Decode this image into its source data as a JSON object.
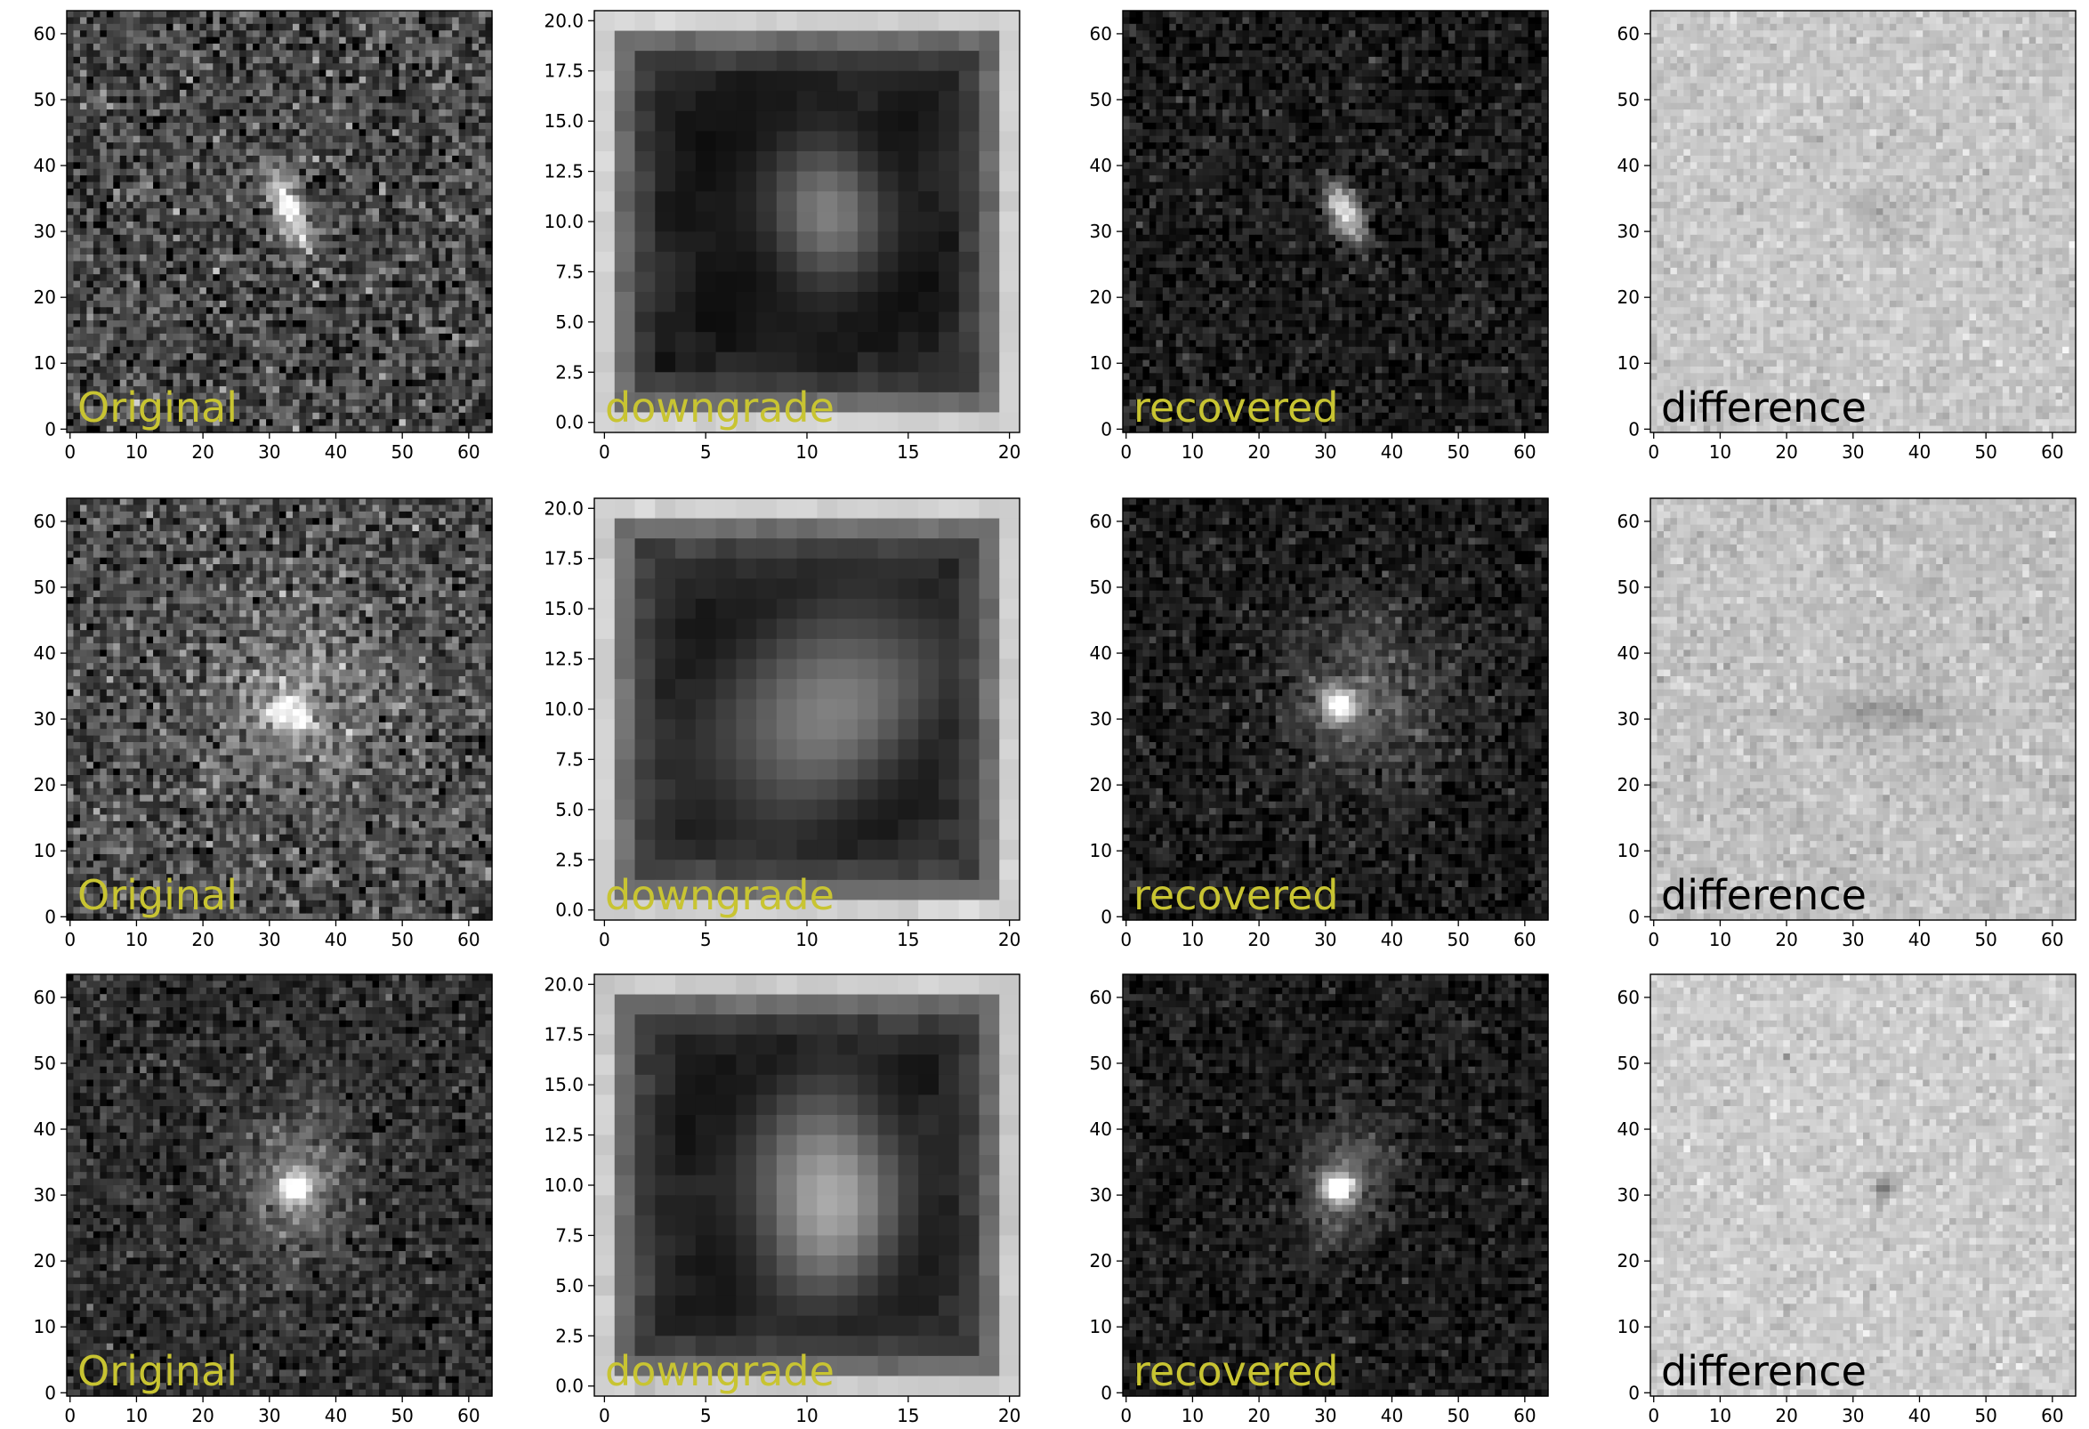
{
  "figure": {
    "rows": 3,
    "columns": 4
  },
  "chart_data": [
    {
      "type": "heatmap",
      "row": 0,
      "col": 0,
      "label": "Original",
      "label_color": "#c8c432",
      "image_size": 64,
      "xlim": [
        0,
        63
      ],
      "ylim": [
        0,
        63
      ],
      "xticks": [
        0,
        10,
        20,
        30,
        40,
        50,
        60
      ],
      "yticks": [
        0,
        10,
        20,
        30,
        40,
        50,
        60
      ],
      "background": 0.28,
      "noise": 0.14,
      "source": {
        "x": 33,
        "y": 33,
        "amplitude": 0.72,
        "sigma_major": 4.2,
        "sigma_minor": 1.8,
        "angle_deg": -65
      },
      "colormap": "gray"
    },
    {
      "type": "heatmap",
      "row": 0,
      "col": 1,
      "label": "downgrade",
      "label_color": "#c8c432",
      "image_size": 21,
      "xlim": [
        0,
        20
      ],
      "ylim": [
        0,
        20
      ],
      "xticks": [
        0,
        5,
        10,
        15,
        20
      ],
      "yticks": [
        0.0,
        2.5,
        5.0,
        7.5,
        10.0,
        12.5,
        15.0,
        17.5,
        20.0
      ],
      "background": 0.07,
      "edge_brightness": 0.75,
      "source": {
        "x": 11,
        "y": 10.5,
        "amplitude": 0.45,
        "sigma_major": 2.3,
        "sigma_minor": 1.9,
        "angle_deg": 90
      },
      "colormap": "gray"
    },
    {
      "type": "heatmap",
      "row": 0,
      "col": 2,
      "label": "recovered",
      "label_color": "#c8c432",
      "image_size": 64,
      "xlim": [
        0,
        63
      ],
      "ylim": [
        0,
        63
      ],
      "xticks": [
        0,
        10,
        20,
        30,
        40,
        50,
        60
      ],
      "yticks": [
        0,
        10,
        20,
        30,
        40,
        50,
        60
      ],
      "background": 0.1,
      "noise": 0.08,
      "source": {
        "x": 33,
        "y": 33,
        "amplitude": 0.82,
        "sigma_major": 3.4,
        "sigma_minor": 1.6,
        "angle_deg": -65
      },
      "colormap": "gray"
    },
    {
      "type": "heatmap",
      "row": 0,
      "col": 3,
      "label": "difference",
      "label_color": "#000000",
      "image_size": 64,
      "xlim": [
        0,
        63
      ],
      "ylim": [
        0,
        63
      ],
      "xticks": [
        0,
        10,
        20,
        30,
        40,
        50,
        60
      ],
      "yticks": [
        0,
        10,
        20,
        30,
        40,
        50,
        60
      ],
      "background": 0.78,
      "noise": 0.05,
      "source": {
        "x": 34,
        "y": 33,
        "amplitude": -0.12,
        "sigma_major": 3,
        "sigma_minor": 2,
        "angle_deg": 0
      },
      "colormap": "gray"
    },
    {
      "type": "heatmap",
      "row": 1,
      "col": 0,
      "label": "Original",
      "label_color": "#c8c432",
      "image_size": 64,
      "xlim": [
        0,
        63
      ],
      "ylim": [
        0,
        63
      ],
      "xticks": [
        0,
        10,
        20,
        30,
        40,
        50,
        60
      ],
      "yticks": [
        0,
        10,
        20,
        30,
        40,
        50,
        60
      ],
      "background": 0.3,
      "noise": 0.14,
      "source": {
        "x": 33,
        "y": 31,
        "amplitude": 0.6,
        "sigma_major": 2.2,
        "sigma_minor": 2.2,
        "angle_deg": 0
      },
      "halo": {
        "x": 35,
        "y": 33,
        "amplitude": 0.22,
        "sigma": 10
      },
      "colormap": "gray"
    },
    {
      "type": "heatmap",
      "row": 1,
      "col": 1,
      "label": "downgrade",
      "label_color": "#c8c432",
      "image_size": 21,
      "xlim": [
        0,
        20
      ],
      "ylim": [
        0,
        20
      ],
      "xticks": [
        0,
        5,
        10,
        15,
        20
      ],
      "yticks": [
        0.0,
        2.5,
        5.0,
        7.5,
        10.0,
        12.5,
        15.0,
        17.5,
        20.0
      ],
      "background": 0.1,
      "edge_brightness": 0.72,
      "source": {
        "x": 11,
        "y": 10,
        "amplitude": 0.42,
        "sigma_major": 4,
        "sigma_minor": 2.6,
        "angle_deg": 40
      },
      "colormap": "gray"
    },
    {
      "type": "heatmap",
      "row": 1,
      "col": 2,
      "label": "recovered",
      "label_color": "#c8c432",
      "image_size": 64,
      "xlim": [
        0,
        63
      ],
      "ylim": [
        0,
        63
      ],
      "xticks": [
        0,
        10,
        20,
        30,
        40,
        50,
        60
      ],
      "yticks": [
        0,
        10,
        20,
        30,
        40,
        50,
        60
      ],
      "background": 0.1,
      "noise": 0.08,
      "source": {
        "x": 32,
        "y": 32,
        "amplitude": 0.85,
        "sigma_major": 1.8,
        "sigma_minor": 1.8,
        "angle_deg": 0
      },
      "halo": {
        "x": 36,
        "y": 33,
        "amplitude": 0.25,
        "sigma": 9
      },
      "colormap": "gray"
    },
    {
      "type": "heatmap",
      "row": 1,
      "col": 3,
      "label": "difference",
      "label_color": "#000000",
      "image_size": 64,
      "xlim": [
        0,
        63
      ],
      "ylim": [
        0,
        63
      ],
      "xticks": [
        0,
        10,
        20,
        30,
        40,
        50,
        60
      ],
      "yticks": [
        0,
        10,
        20,
        30,
        40,
        50,
        60
      ],
      "background": 0.76,
      "noise": 0.05,
      "source": {
        "x": 36,
        "y": 31,
        "amplitude": -0.15,
        "sigma_major": 6,
        "sigma_minor": 2,
        "angle_deg": 0
      },
      "colormap": "gray"
    },
    {
      "type": "heatmap",
      "row": 2,
      "col": 0,
      "label": "Original",
      "label_color": "#c8c432",
      "image_size": 64,
      "xlim": [
        0,
        63
      ],
      "ylim": [
        0,
        63
      ],
      "xticks": [
        0,
        10,
        20,
        30,
        40,
        50,
        60
      ],
      "yticks": [
        0,
        10,
        20,
        30,
        40,
        50,
        60
      ],
      "background": 0.18,
      "noise": 0.09,
      "source": {
        "x": 34,
        "y": 31,
        "amplitude": 0.8,
        "sigma_major": 1.7,
        "sigma_minor": 1.7,
        "angle_deg": 0
      },
      "halo": {
        "x": 34,
        "y": 31,
        "amplitude": 0.3,
        "sigma_major": 9,
        "sigma_minor": 5.5,
        "angle_deg": 75
      },
      "colormap": "gray"
    },
    {
      "type": "heatmap",
      "row": 2,
      "col": 1,
      "label": "downgrade",
      "label_color": "#c8c432",
      "image_size": 21,
      "xlim": [
        0,
        20
      ],
      "ylim": [
        0,
        20
      ],
      "xticks": [
        0,
        5,
        10,
        15,
        20
      ],
      "yticks": [
        0.0,
        2.5,
        5.0,
        7.5,
        10.0,
        12.5,
        15.0,
        17.5,
        20.0
      ],
      "background": 0.08,
      "edge_brightness": 0.72,
      "source": {
        "x": 11,
        "y": 9.5,
        "amplitude": 0.6,
        "sigma_major": 3.3,
        "sigma_minor": 2.4,
        "angle_deg": 90
      },
      "colormap": "gray"
    },
    {
      "type": "heatmap",
      "row": 2,
      "col": 2,
      "label": "recovered",
      "label_color": "#c8c432",
      "image_size": 64,
      "xlim": [
        0,
        63
      ],
      "ylim": [
        0,
        63
      ],
      "xticks": [
        0,
        10,
        20,
        30,
        40,
        50,
        60
      ],
      "yticks": [
        0,
        10,
        20,
        30,
        40,
        50,
        60
      ],
      "background": 0.1,
      "noise": 0.07,
      "source": {
        "x": 32,
        "y": 31,
        "amplitude": 0.88,
        "sigma_major": 1.6,
        "sigma_minor": 1.6,
        "angle_deg": 0
      },
      "halo": {
        "x": 33,
        "y": 32,
        "amplitude": 0.3,
        "sigma_major": 7,
        "sigma_minor": 4.5,
        "angle_deg": 75
      },
      "colormap": "gray"
    },
    {
      "type": "heatmap",
      "row": 2,
      "col": 3,
      "label": "difference",
      "label_color": "#000000",
      "image_size": 64,
      "xlim": [
        0,
        63
      ],
      "ylim": [
        0,
        63
      ],
      "xticks": [
        0,
        10,
        20,
        30,
        40,
        50,
        60
      ],
      "yticks": [
        0,
        10,
        20,
        30,
        40,
        50,
        60
      ],
      "background": 0.8,
      "noise": 0.05,
      "source": {
        "x": 35,
        "y": 31,
        "amplitude": -0.25,
        "sigma_major": 1.5,
        "sigma_minor": 1.5,
        "angle_deg": 0
      },
      "colormap": "gray"
    }
  ]
}
